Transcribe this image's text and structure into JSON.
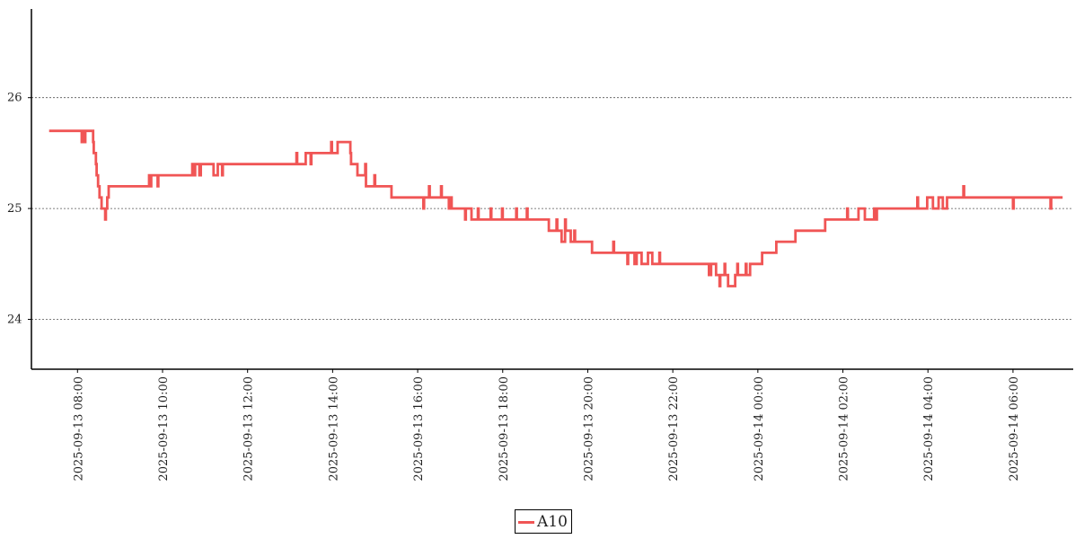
{
  "chart_data": {
    "type": "line",
    "title": "",
    "xlabel": "",
    "ylabel": "",
    "x_type": "datetime",
    "xlim": [
      "2025-09-13 06:55",
      "2025-09-14 07:25"
    ],
    "ylim": [
      23.55,
      26.8
    ],
    "grid": "horizontal-dotted",
    "legend_placement": "bottom-center",
    "x_ticks": [
      "2025-09-13 08:00",
      "2025-09-13 10:00",
      "2025-09-13 12:00",
      "2025-09-13 14:00",
      "2025-09-13 16:00",
      "2025-09-13 18:00",
      "2025-09-13 20:00",
      "2025-09-13 22:00",
      "2025-09-14 00:00",
      "2025-09-14 02:00",
      "2025-09-14 04:00",
      "2025-09-14 06:00"
    ],
    "y_ticks": [
      24,
      25,
      26
    ],
    "series": [
      {
        "name": "A10",
        "color": "#f05555",
        "points": [
          [
            "2025-09-13 07:20",
            25.7
          ],
          [
            "2025-09-13 08:05",
            25.7
          ],
          [
            "2025-09-13 08:06",
            25.6
          ],
          [
            "2025-09-13 08:09",
            25.7
          ],
          [
            "2025-09-13 08:10",
            25.6
          ],
          [
            "2025-09-13 08:11",
            25.7
          ],
          [
            "2025-09-13 08:20",
            25.7
          ],
          [
            "2025-09-13 08:22",
            25.6
          ],
          [
            "2025-09-13 08:23",
            25.5
          ],
          [
            "2025-09-13 08:26",
            25.4
          ],
          [
            "2025-09-13 08:27",
            25.3
          ],
          [
            "2025-09-13 08:29",
            25.2
          ],
          [
            "2025-09-13 08:31",
            25.1
          ],
          [
            "2025-09-13 08:34",
            25.0
          ],
          [
            "2025-09-13 08:38",
            25.0
          ],
          [
            "2025-09-13 08:39",
            24.9
          ],
          [
            "2025-09-13 08:40",
            25.0
          ],
          [
            "2025-09-13 08:42",
            25.1
          ],
          [
            "2025-09-13 08:44",
            25.2
          ],
          [
            "2025-09-13 09:40",
            25.2
          ],
          [
            "2025-09-13 09:41",
            25.3
          ],
          [
            "2025-09-13 09:42",
            25.2
          ],
          [
            "2025-09-13 09:44",
            25.3
          ],
          [
            "2025-09-13 09:52",
            25.3
          ],
          [
            "2025-09-13 09:53",
            25.2
          ],
          [
            "2025-09-13 09:54",
            25.3
          ],
          [
            "2025-09-13 10:40",
            25.3
          ],
          [
            "2025-09-13 10:42",
            25.4
          ],
          [
            "2025-09-13 10:44",
            25.3
          ],
          [
            "2025-09-13 10:46",
            25.4
          ],
          [
            "2025-09-13 10:50",
            25.4
          ],
          [
            "2025-09-13 10:52",
            25.3
          ],
          [
            "2025-09-13 10:54",
            25.4
          ],
          [
            "2025-09-13 11:10",
            25.4
          ],
          [
            "2025-09-13 11:12",
            25.3
          ],
          [
            "2025-09-13 11:17",
            25.3
          ],
          [
            "2025-09-13 11:18",
            25.4
          ],
          [
            "2025-09-13 11:23",
            25.4
          ],
          [
            "2025-09-13 11:24",
            25.3
          ],
          [
            "2025-09-13 11:25",
            25.4
          ],
          [
            "2025-09-13 13:08",
            25.4
          ],
          [
            "2025-09-13 13:09",
            25.5
          ],
          [
            "2025-09-13 13:10",
            25.4
          ],
          [
            "2025-09-13 13:21",
            25.4
          ],
          [
            "2025-09-13 13:22",
            25.5
          ],
          [
            "2025-09-13 13:28",
            25.5
          ],
          [
            "2025-09-13 13:29",
            25.4
          ],
          [
            "2025-09-13 13:30",
            25.5
          ],
          [
            "2025-09-13 13:57",
            25.5
          ],
          [
            "2025-09-13 13:58",
            25.6
          ],
          [
            "2025-09-13 13:59",
            25.5
          ],
          [
            "2025-09-13 14:06",
            25.5
          ],
          [
            "2025-09-13 14:07",
            25.6
          ],
          [
            "2025-09-13 14:24",
            25.6
          ],
          [
            "2025-09-13 14:25",
            25.5
          ],
          [
            "2025-09-13 14:26",
            25.4
          ],
          [
            "2025-09-13 14:34",
            25.4
          ],
          [
            "2025-09-13 14:35",
            25.3
          ],
          [
            "2025-09-13 14:45",
            25.3
          ],
          [
            "2025-09-13 14:46",
            25.4
          ],
          [
            "2025-09-13 14:47",
            25.2
          ],
          [
            "2025-09-13 14:58",
            25.2
          ],
          [
            "2025-09-13 14:59",
            25.3
          ],
          [
            "2025-09-13 15:00",
            25.2
          ],
          [
            "2025-09-13 15:22",
            25.2
          ],
          [
            "2025-09-13 15:23",
            25.1
          ],
          [
            "2025-09-13 16:07",
            25.1
          ],
          [
            "2025-09-13 16:08",
            25.0
          ],
          [
            "2025-09-13 16:09",
            25.1
          ],
          [
            "2025-09-13 16:15",
            25.1
          ],
          [
            "2025-09-13 16:16",
            25.2
          ],
          [
            "2025-09-13 16:17",
            25.1
          ],
          [
            "2025-09-13 16:32",
            25.1
          ],
          [
            "2025-09-13 16:33",
            25.2
          ],
          [
            "2025-09-13 16:34",
            25.1
          ],
          [
            "2025-09-13 16:43",
            25.1
          ],
          [
            "2025-09-13 16:44",
            25.0
          ],
          [
            "2025-09-13 16:45",
            25.1
          ],
          [
            "2025-09-13 16:47",
            25.1
          ],
          [
            "2025-09-13 16:48",
            25.0
          ],
          [
            "2025-09-13 17:06",
            25.0
          ],
          [
            "2025-09-13 17:07",
            24.9
          ],
          [
            "2025-09-13 17:08",
            25.0
          ],
          [
            "2025-09-13 17:15",
            25.0
          ],
          [
            "2025-09-13 17:16",
            24.9
          ],
          [
            "2025-09-13 17:24",
            24.9
          ],
          [
            "2025-09-13 17:25",
            25.0
          ],
          [
            "2025-09-13 17:26",
            24.9
          ],
          [
            "2025-09-13 17:42",
            24.9
          ],
          [
            "2025-09-13 17:43",
            25.0
          ],
          [
            "2025-09-13 17:44",
            24.9
          ],
          [
            "2025-09-13 17:58",
            24.9
          ],
          [
            "2025-09-13 17:59",
            25.0
          ],
          [
            "2025-09-13 18:00",
            24.9
          ],
          [
            "2025-09-13 18:18",
            24.9
          ],
          [
            "2025-09-13 18:19",
            25.0
          ],
          [
            "2025-09-13 18:20",
            24.9
          ],
          [
            "2025-09-13 18:33",
            24.9
          ],
          [
            "2025-09-13 18:34",
            25.0
          ],
          [
            "2025-09-13 18:35",
            24.9
          ],
          [
            "2025-09-13 19:04",
            24.9
          ],
          [
            "2025-09-13 19:05",
            24.8
          ],
          [
            "2025-09-13 19:15",
            24.8
          ],
          [
            "2025-09-13 19:16",
            24.9
          ],
          [
            "2025-09-13 19:17",
            24.8
          ],
          [
            "2025-09-13 19:22",
            24.8
          ],
          [
            "2025-09-13 19:23",
            24.7
          ],
          [
            "2025-09-13 19:27",
            24.7
          ],
          [
            "2025-09-13 19:28",
            24.9
          ],
          [
            "2025-09-13 19:29",
            24.8
          ],
          [
            "2025-09-13 19:35",
            24.8
          ],
          [
            "2025-09-13 19:36",
            24.7
          ],
          [
            "2025-09-13 19:40",
            24.7
          ],
          [
            "2025-09-13 19:41",
            24.8
          ],
          [
            "2025-09-13 19:42",
            24.7
          ],
          [
            "2025-09-13 20:05",
            24.7
          ],
          [
            "2025-09-13 20:06",
            24.6
          ],
          [
            "2025-09-13 20:35",
            24.6
          ],
          [
            "2025-09-13 20:36",
            24.7
          ],
          [
            "2025-09-13 20:37",
            24.6
          ],
          [
            "2025-09-13 20:55",
            24.6
          ],
          [
            "2025-09-13 20:56",
            24.5
          ],
          [
            "2025-09-13 20:57",
            24.6
          ],
          [
            "2025-09-13 21:05",
            24.6
          ],
          [
            "2025-09-13 21:06",
            24.5
          ],
          [
            "2025-09-13 21:08",
            24.5
          ],
          [
            "2025-09-13 21:09",
            24.6
          ],
          [
            "2025-09-13 21:15",
            24.6
          ],
          [
            "2025-09-13 21:16",
            24.5
          ],
          [
            "2025-09-13 21:24",
            24.5
          ],
          [
            "2025-09-13 21:25",
            24.6
          ],
          [
            "2025-09-13 21:30",
            24.6
          ],
          [
            "2025-09-13 21:31",
            24.5
          ],
          [
            "2025-09-13 21:40",
            24.5
          ],
          [
            "2025-09-13 21:41",
            24.6
          ],
          [
            "2025-09-13 21:42",
            24.5
          ],
          [
            "2025-09-13 22:50",
            24.5
          ],
          [
            "2025-09-13 22:51",
            24.4
          ],
          [
            "2025-09-13 22:53",
            24.4
          ],
          [
            "2025-09-13 22:54",
            24.5
          ],
          [
            "2025-09-13 23:00",
            24.5
          ],
          [
            "2025-09-13 23:01",
            24.4
          ],
          [
            "2025-09-13 23:05",
            24.4
          ],
          [
            "2025-09-13 23:06",
            24.3
          ],
          [
            "2025-09-13 23:07",
            24.4
          ],
          [
            "2025-09-13 23:12",
            24.4
          ],
          [
            "2025-09-13 23:13",
            24.5
          ],
          [
            "2025-09-13 23:14",
            24.4
          ],
          [
            "2025-09-13 23:17",
            24.4
          ],
          [
            "2025-09-13 23:18",
            24.3
          ],
          [
            "2025-09-13 23:27",
            24.3
          ],
          [
            "2025-09-13 23:28",
            24.4
          ],
          [
            "2025-09-13 23:30",
            24.4
          ],
          [
            "2025-09-13 23:31",
            24.5
          ],
          [
            "2025-09-13 23:32",
            24.4
          ],
          [
            "2025-09-13 23:42",
            24.4
          ],
          [
            "2025-09-13 23:43",
            24.5
          ],
          [
            "2025-09-13 23:44",
            24.4
          ],
          [
            "2025-09-13 23:48",
            24.4
          ],
          [
            "2025-09-13 23:49",
            24.5
          ],
          [
            "2025-09-14 00:05",
            24.5
          ],
          [
            "2025-09-14 00:06",
            24.6
          ],
          [
            "2025-09-14 00:25",
            24.6
          ],
          [
            "2025-09-14 00:26",
            24.7
          ],
          [
            "2025-09-14 00:52",
            24.7
          ],
          [
            "2025-09-14 00:53",
            24.8
          ],
          [
            "2025-09-14 01:34",
            24.8
          ],
          [
            "2025-09-14 01:35",
            24.9
          ],
          [
            "2025-09-14 02:05",
            24.9
          ],
          [
            "2025-09-14 02:06",
            25.0
          ],
          [
            "2025-09-14 02:07",
            24.9
          ],
          [
            "2025-09-14 02:21",
            24.9
          ],
          [
            "2025-09-14 02:22",
            25.0
          ],
          [
            "2025-09-14 02:30",
            25.0
          ],
          [
            "2025-09-14 02:31",
            24.9
          ],
          [
            "2025-09-14 02:43",
            24.9
          ],
          [
            "2025-09-14 02:44",
            25.0
          ],
          [
            "2025-09-14 02:45",
            24.9
          ],
          [
            "2025-09-14 02:47",
            24.9
          ],
          [
            "2025-09-14 02:48",
            25.0
          ],
          [
            "2025-09-14 03:44",
            25.0
          ],
          [
            "2025-09-14 03:45",
            25.1
          ],
          [
            "2025-09-14 03:46",
            25.0
          ],
          [
            "2025-09-14 03:58",
            25.0
          ],
          [
            "2025-09-14 03:59",
            25.1
          ],
          [
            "2025-09-14 04:06",
            25.1
          ],
          [
            "2025-09-14 04:07",
            25.0
          ],
          [
            "2025-09-14 04:14",
            25.0
          ],
          [
            "2025-09-14 04:15",
            25.1
          ],
          [
            "2025-09-14 04:20",
            25.1
          ],
          [
            "2025-09-14 04:21",
            25.0
          ],
          [
            "2025-09-14 04:26",
            25.0
          ],
          [
            "2025-09-14 04:27",
            25.1
          ],
          [
            "2025-09-14 04:49",
            25.1
          ],
          [
            "2025-09-14 04:50",
            25.2
          ],
          [
            "2025-09-14 04:51",
            25.1
          ],
          [
            "2025-09-14 05:59",
            25.1
          ],
          [
            "2025-09-14 06:00",
            25.0
          ],
          [
            "2025-09-14 06:01",
            25.1
          ],
          [
            "2025-09-14 06:52",
            25.1
          ],
          [
            "2025-09-14 06:53",
            25.0
          ],
          [
            "2025-09-14 06:54",
            25.1
          ],
          [
            "2025-09-14 07:10",
            25.1
          ]
        ]
      }
    ]
  },
  "legend": {
    "items": [
      {
        "label": "A10",
        "color": "#f05555"
      }
    ]
  }
}
